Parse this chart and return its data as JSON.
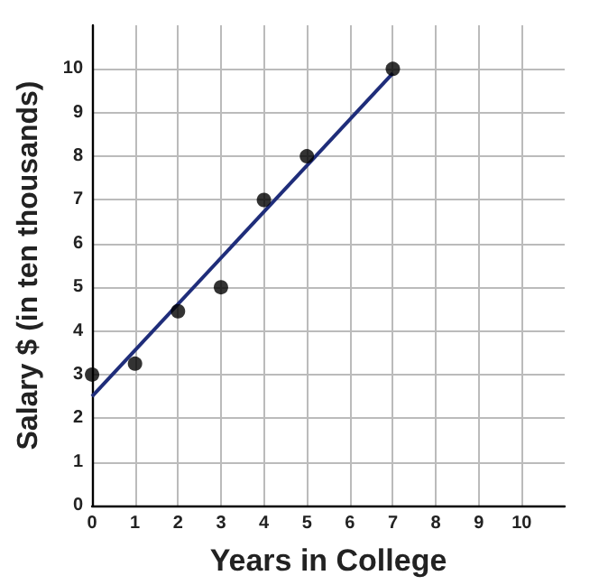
{
  "chart_data": {
    "type": "scatter",
    "xlabel": "Years in College",
    "ylabel": "Salary $ (in ten thousands)",
    "series": [
      {
        "color": "#000000",
        "x": [
          0,
          1,
          2,
          3,
          4,
          5,
          7
        ],
        "values": [
          3,
          3.25,
          4.45,
          5,
          7,
          8,
          10
        ]
      },
      {
        "type": "line",
        "marker": "none",
        "color": "#1f2d7a",
        "x": [
          0,
          7
        ],
        "values": [
          2.5,
          9.9
        ]
      }
    ],
    "xlim": [
      0,
      11
    ],
    "ylim": [
      0,
      11
    ],
    "xticks": [
      0,
      1,
      2,
      3,
      4,
      5,
      6,
      7,
      8,
      9,
      10
    ],
    "yticks": [
      0,
      1,
      2,
      3,
      4,
      5,
      6,
      7,
      8,
      9,
      10
    ],
    "grid": true,
    "marker": "circle",
    "line_style": "solid"
  }
}
